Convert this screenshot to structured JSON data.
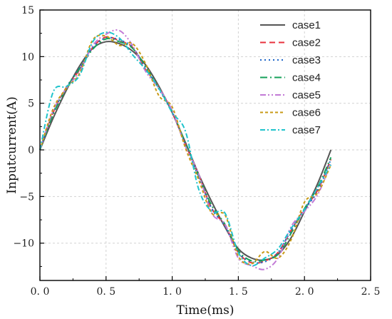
{
  "chart_data": {
    "type": "line",
    "title": "",
    "xlabel": "Time(ms)",
    "ylabel": "Inputcurrent(A)",
    "xlim": [
      0,
      2.5
    ],
    "ylim": [
      -14,
      15
    ],
    "xticks": [
      0,
      0.5,
      1.0,
      1.5,
      2.0,
      2.5
    ],
    "xtick_labels": [
      "0. 0",
      "0. 5",
      "1. 0",
      "1. 5",
      "2. 0",
      "2. 5"
    ],
    "yticks": [
      -10,
      -5,
      0,
      5,
      10,
      15
    ],
    "ytick_labels": [
      "−10",
      "−5",
      "0",
      "5",
      "10",
      "15"
    ],
    "grid": true,
    "legend_position": "top-right",
    "x": [
      0,
      0.1,
      0.2,
      0.3,
      0.4,
      0.5,
      0.6,
      0.7,
      0.8,
      0.9,
      1.0,
      1.1,
      1.2,
      1.3,
      1.4,
      1.5,
      1.6,
      1.7,
      1.8,
      1.9,
      2.0,
      2.1,
      2.2
    ],
    "series": [
      {
        "name": "case1",
        "color": "#555555",
        "dash": "solid",
        "values": [
          0,
          3.4,
          6.4,
          9.0,
          10.9,
          11.6,
          11.4,
          10.6,
          9.1,
          6.8,
          4.0,
          0.8,
          -2.6,
          -5.6,
          -8.3,
          -10.6,
          -11.6,
          -11.8,
          -11.2,
          -9.4,
          -6.6,
          -3.6,
          0
        ]
      },
      {
        "name": "case2",
        "color": "#e8323c",
        "dash": "dashed",
        "values": [
          0,
          4.0,
          6.7,
          8.6,
          11.0,
          12.1,
          11.7,
          11.0,
          8.6,
          6.7,
          4.0,
          0.6,
          -2.7,
          -6.3,
          -8.1,
          -11.0,
          -12.1,
          -11.9,
          -11.0,
          -8.6,
          -6.3,
          -4.3,
          -1.0
        ]
      },
      {
        "name": "case3",
        "color": "#1f66c8",
        "dash": "dotted",
        "values": [
          0,
          4.0,
          6.7,
          8.8,
          11.0,
          12.0,
          11.8,
          11.0,
          8.8,
          6.5,
          4.0,
          0.6,
          -2.9,
          -6.3,
          -8.2,
          -11.0,
          -12.0,
          -12.0,
          -11.0,
          -8.6,
          -6.4,
          -4.4,
          -1.0
        ]
      },
      {
        "name": "case4",
        "color": "#16a05a",
        "dash": "dashdot",
        "values": [
          0,
          3.8,
          6.6,
          8.7,
          10.8,
          11.9,
          11.6,
          10.9,
          8.9,
          6.6,
          4.1,
          0.7,
          -2.8,
          -6.0,
          -8.0,
          -10.8,
          -11.9,
          -11.8,
          -11.2,
          -8.9,
          -6.3,
          -4.0,
          -0.8
        ]
      },
      {
        "name": "case5",
        "color": "#c27ad6",
        "dash": "dashdotdot",
        "values": [
          0,
          4.2,
          6.6,
          8.4,
          11.2,
          12.4,
          12.8,
          11.2,
          8.4,
          6.6,
          4.2,
          0.4,
          -2.6,
          -6.8,
          -8.0,
          -11.6,
          -12.4,
          -12.8,
          -11.6,
          -8.2,
          -6.6,
          -4.8,
          -1.4
        ]
      },
      {
        "name": "case6",
        "color": "#c89a16",
        "dash": "shortdash",
        "values": [
          0,
          4.4,
          6.6,
          8.2,
          11.8,
          12.2,
          11.2,
          11.4,
          9.2,
          5.8,
          4.6,
          0.2,
          -3.2,
          -6.8,
          -7.0,
          -11.4,
          -12.2,
          -10.9,
          -11.6,
          -9.6,
          -5.6,
          -4.6,
          -1.6
        ]
      },
      {
        "name": "case7",
        "color": "#1fc3cc",
        "dash": "dashdot2",
        "values": [
          0,
          6.2,
          6.8,
          8.0,
          11.6,
          12.6,
          12.0,
          10.2,
          8.6,
          6.6,
          4.0,
          2.0,
          -4.2,
          -6.6,
          -6.8,
          -11.0,
          -12.4,
          -11.6,
          -10.6,
          -8.4,
          -6.4,
          -4.0,
          -1.6
        ]
      }
    ]
  }
}
